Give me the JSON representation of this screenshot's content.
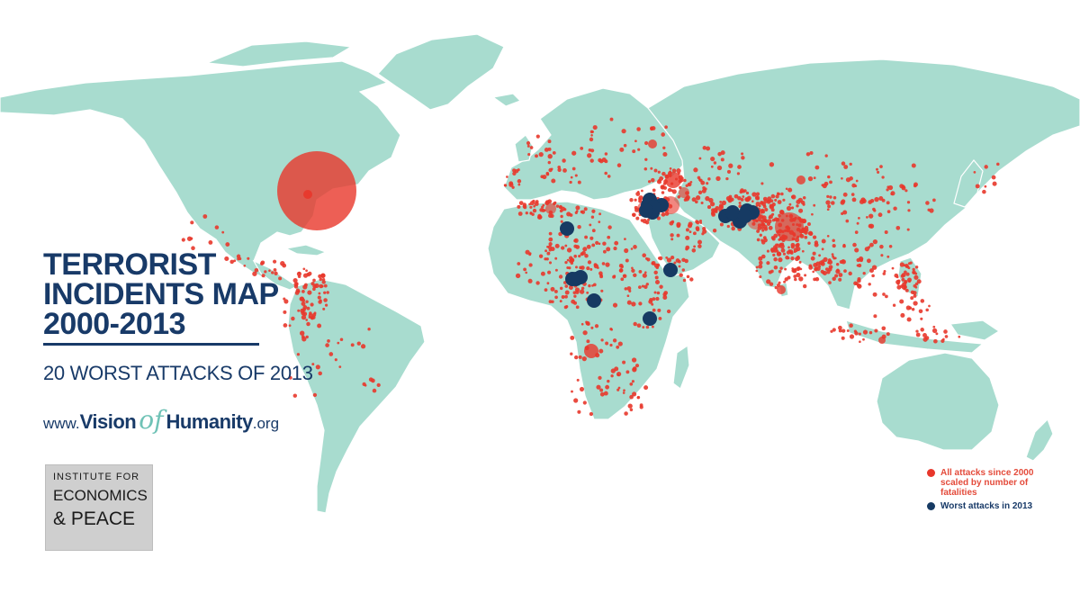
{
  "title": {
    "line1": "TERRORIST",
    "line2": "INCIDENTS MAP",
    "line3": "2000-2013"
  },
  "subtitle": "20 WORST ATTACKS OF 2013",
  "website": {
    "prefix": "www.",
    "word1": "Vision",
    "connector": "of",
    "word2": "Humanity",
    "suffix": ".org"
  },
  "logo": {
    "line1": "INSTITUTE FOR",
    "line2": "ECONOMICS",
    "line3": "& PEACE"
  },
  "legend": {
    "all_attacks": "All attacks since 2000 scaled by number of fatalities",
    "worst_attacks": "Worst attacks in 2013"
  },
  "colors": {
    "land": "#a8dccf",
    "all_attacks": "#e8372b",
    "worst_attacks": "#163a63",
    "text": "#183a68",
    "accent": "#6fc2b6"
  }
}
